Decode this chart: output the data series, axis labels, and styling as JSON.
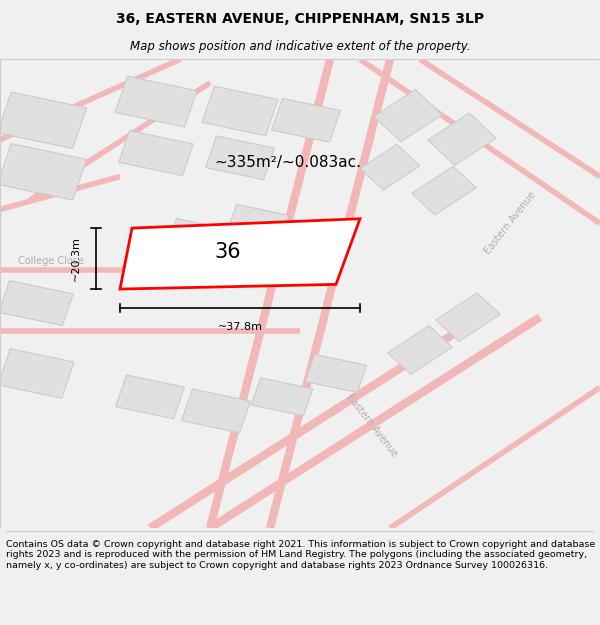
{
  "title": "36, EASTERN AVENUE, CHIPPENHAM, SN15 3LP",
  "subtitle": "Map shows position and indicative extent of the property.",
  "footer": "Contains OS data © Crown copyright and database right 2021. This information is subject to Crown copyright and database rights 2023 and is reproduced with the permission of HM Land Registry. The polygons (including the associated geometry, namely x, y co-ordinates) are subject to Crown copyright and database rights 2023 Ordnance Survey 100026316.",
  "area_text": "~335m²/~0.083ac.",
  "number_text": "36",
  "width_text": "~37.8m",
  "height_text": "~20.3m",
  "bg_color": "#f0f0f0",
  "map_bg": "#f8f8f8",
  "road_color": "#f2b8b8",
  "building_color": "#e0e0e0",
  "building_edge": "#c8c8c8",
  "highlight_color": "#ff0000",
  "street_label_color": "#b0b0b0",
  "title_fontsize": 10,
  "subtitle_fontsize": 8.5,
  "footer_fontsize": 6.8
}
